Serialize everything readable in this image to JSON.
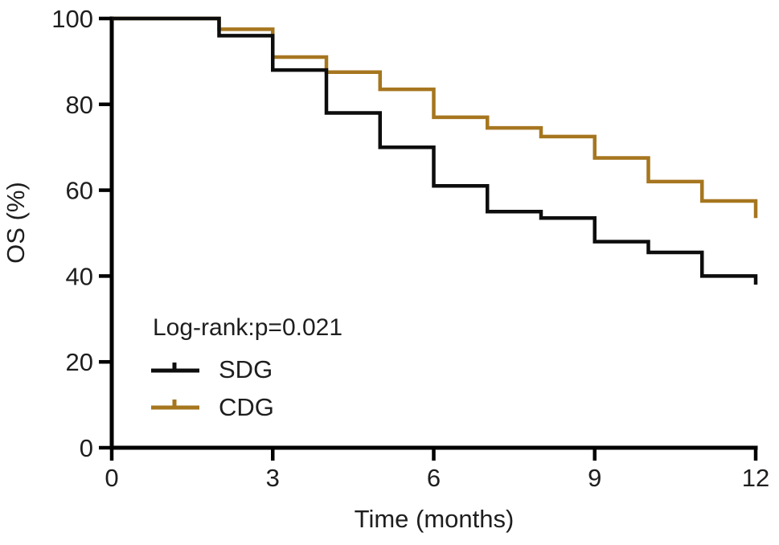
{
  "chart_data": {
    "type": "line",
    "subtype": "kaplan_meier_step",
    "title": "",
    "xlabel": "Time (months)",
    "ylabel": "OS (%)",
    "xlim": [
      0,
      12
    ],
    "ylim": [
      0,
      100
    ],
    "xticks": [
      0,
      3,
      6,
      9,
      12
    ],
    "yticks": [
      0,
      20,
      40,
      60,
      80,
      100
    ],
    "grid": false,
    "annotation": "Log-rank:p=0.021",
    "legend_position": "inside-lower-left",
    "axis_color": "#000000",
    "text_color": "#1e1e1e",
    "series": [
      {
        "name": "SDG",
        "color": "#0d0d0d",
        "x": [
          0,
          2,
          3,
          4,
          5,
          6,
          7,
          8,
          9,
          10,
          11,
          12
        ],
        "y": [
          100,
          96,
          88,
          78,
          70,
          61,
          55,
          53.5,
          48,
          45.5,
          40,
          38
        ]
      },
      {
        "name": "CDG",
        "color": "#a6761f",
        "x": [
          0,
          2,
          3,
          4,
          5,
          6,
          7,
          8,
          9,
          10,
          11,
          12
        ],
        "y": [
          100,
          97.5,
          91,
          87.5,
          83.5,
          77,
          74.5,
          72.5,
          67.5,
          62,
          57.5,
          53.5
        ]
      }
    ]
  }
}
